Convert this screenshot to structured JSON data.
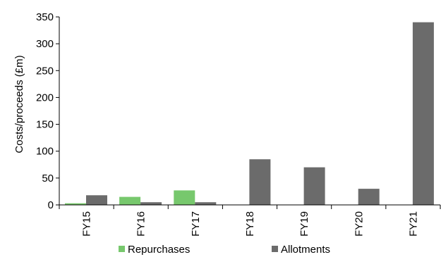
{
  "chart_data": {
    "type": "bar",
    "title": "",
    "xlabel": "",
    "ylabel": "Costs/proceeds (£m)",
    "ylim": [
      0,
      350
    ],
    "yticks": [
      0,
      50,
      100,
      150,
      200,
      250,
      300,
      350
    ],
    "categories": [
      "FY15",
      "FY16",
      "FY17",
      "FY18",
      "FY19",
      "FY20",
      "FY21"
    ],
    "series": [
      {
        "name": "Repurchases",
        "color": "#77c86d",
        "values": [
          3,
          15,
          27,
          0,
          0,
          0,
          0
        ]
      },
      {
        "name": "Allotments",
        "color": "#6b6b6b",
        "values": [
          18,
          5,
          5,
          85,
          70,
          30,
          340
        ]
      }
    ],
    "grid": false,
    "legend_position": "bottom"
  }
}
